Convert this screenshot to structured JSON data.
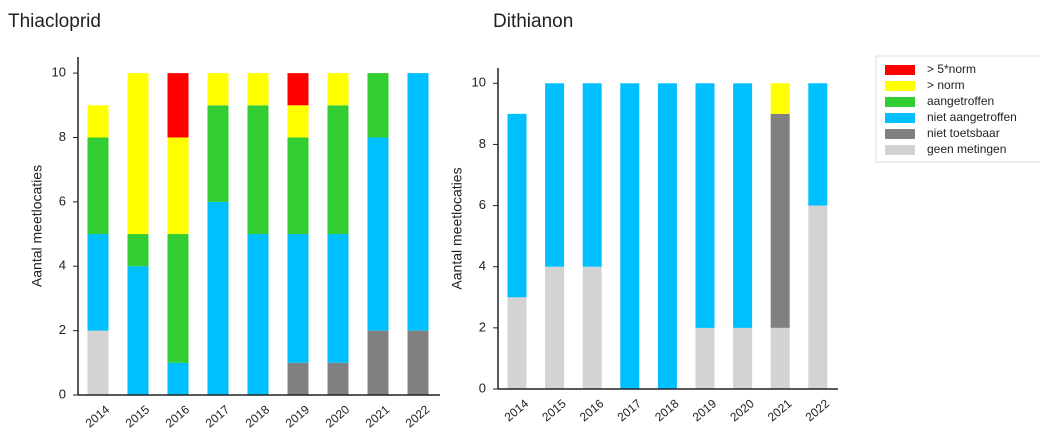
{
  "chart_data": [
    {
      "type": "stacked_bar",
      "title": "Thiacloprid",
      "y_label": "Aantal meetlocaties",
      "categories": [
        "2014",
        "2015",
        "2016",
        "2017",
        "2018",
        "2019",
        "2020",
        "2021",
        "2022"
      ],
      "ylim": [
        0,
        10.5
      ],
      "yticks": [
        0,
        2,
        4,
        6,
        8,
        10
      ],
      "series": [
        {
          "name": "> 5*norm",
          "color": "#ff0000",
          "values": [
            0,
            0,
            2,
            0,
            0,
            1,
            0,
            0,
            0
          ]
        },
        {
          "name": "> norm",
          "color": "#ffff00",
          "values": [
            1,
            5,
            3,
            1,
            1,
            1,
            1,
            0,
            0
          ]
        },
        {
          "name": "aangetroffen",
          "color": "#32cd32",
          "values": [
            3,
            1,
            4,
            3,
            4,
            3,
            4,
            2,
            0
          ]
        },
        {
          "name": "niet aangetroffen",
          "color": "#00bfff",
          "values": [
            3,
            4,
            1,
            6,
            5,
            4,
            4,
            6,
            8
          ]
        },
        {
          "name": "niet toetsbaar",
          "color": "#808080",
          "values": [
            0,
            0,
            0,
            0,
            0,
            1,
            1,
            2,
            2
          ]
        },
        {
          "name": "geen metingen",
          "color": "#d3d3d3",
          "values": [
            2,
            0,
            0,
            0,
            0,
            0,
            0,
            0,
            0
          ]
        }
      ]
    },
    {
      "type": "stacked_bar",
      "title": "Dithianon",
      "y_label": "Aantal meetlocaties",
      "categories": [
        "2014",
        "2015",
        "2016",
        "2017",
        "2018",
        "2019",
        "2020",
        "2021",
        "2022"
      ],
      "ylim": [
        0,
        10.5
      ],
      "yticks": [
        0,
        2,
        4,
        6,
        8,
        10
      ],
      "series": [
        {
          "name": "> 5*norm",
          "color": "#ff0000",
          "values": [
            0,
            0,
            0,
            0,
            0,
            0,
            0,
            0,
            0
          ]
        },
        {
          "name": "> norm",
          "color": "#ffff00",
          "values": [
            0,
            0,
            0,
            0,
            0,
            0,
            0,
            1,
            0
          ]
        },
        {
          "name": "aangetroffen",
          "color": "#32cd32",
          "values": [
            0,
            0,
            0,
            0,
            0,
            0,
            0,
            0,
            0
          ]
        },
        {
          "name": "niet aangetroffen",
          "color": "#00bfff",
          "values": [
            6,
            6,
            6,
            10,
            10,
            8,
            8,
            0,
            4
          ]
        },
        {
          "name": "niet toetsbaar",
          "color": "#808080",
          "values": [
            0,
            0,
            0,
            0,
            0,
            0,
            0,
            7,
            0
          ]
        },
        {
          "name": "geen metingen",
          "color": "#d3d3d3",
          "values": [
            3,
            4,
            4,
            0,
            0,
            2,
            2,
            2,
            6
          ]
        }
      ]
    }
  ]
}
